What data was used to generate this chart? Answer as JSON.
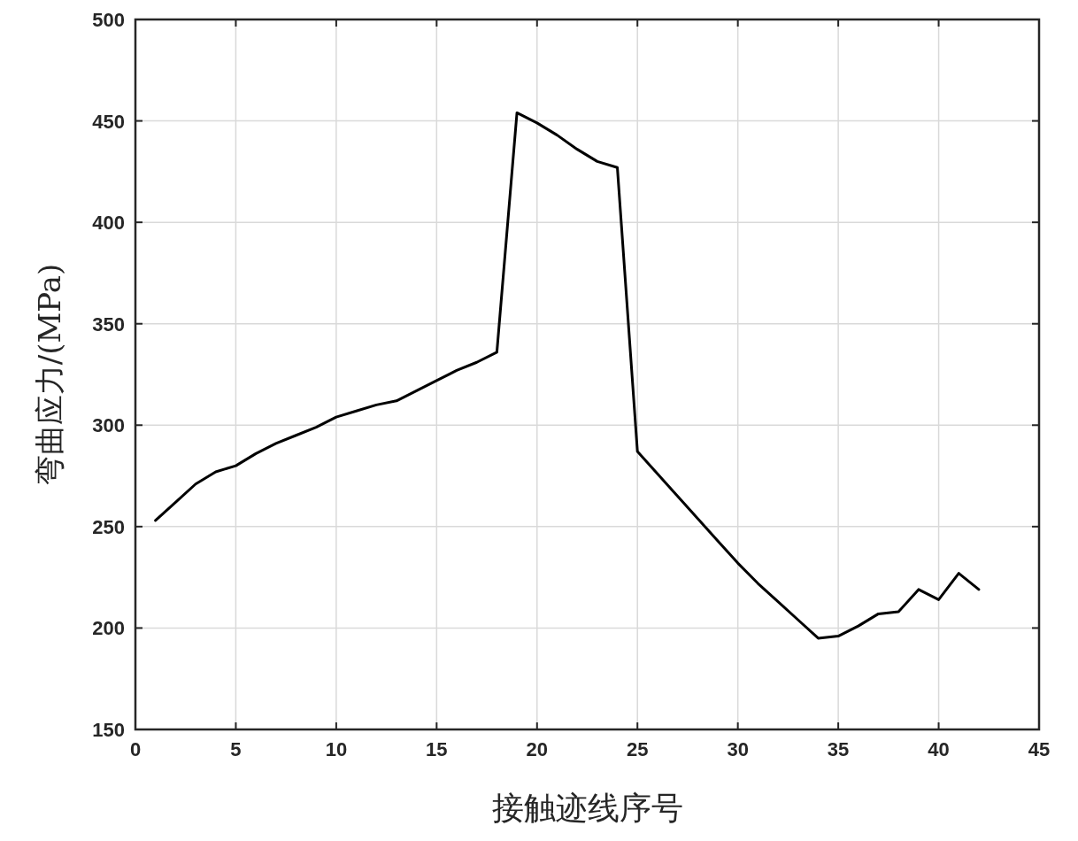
{
  "chart_data": {
    "type": "line",
    "xlabel": "接触迹线序号",
    "ylabel": "弯曲应力/(MPa)",
    "x": [
      1,
      2,
      3,
      4,
      5,
      6,
      7,
      8,
      9,
      10,
      11,
      12,
      13,
      14,
      15,
      16,
      17,
      18,
      19,
      20,
      21,
      22,
      23,
      24,
      25,
      26,
      27,
      28,
      29,
      30,
      31,
      32,
      33,
      34,
      35,
      36,
      37,
      38,
      39,
      40,
      41,
      42
    ],
    "series": [
      {
        "color": "#000000",
        "values": [
          253,
          262,
          271,
          277,
          280,
          286,
          291,
          295,
          299,
          304,
          307,
          310,
          312,
          317,
          322,
          327,
          331,
          336,
          454,
          449,
          443,
          436,
          430,
          427,
          287,
          276,
          265,
          254,
          243,
          232,
          222,
          213,
          204,
          195,
          196,
          201,
          207,
          208,
          219,
          214,
          227,
          219
        ]
      }
    ],
    "xlim": [
      0,
      45
    ],
    "ylim": [
      150,
      500
    ],
    "xticks": [
      0,
      5,
      10,
      15,
      20,
      25,
      30,
      35,
      40,
      45
    ],
    "yticks": [
      150,
      200,
      250,
      300,
      350,
      400,
      450,
      500
    ],
    "grid": true,
    "line_style": "solid"
  }
}
